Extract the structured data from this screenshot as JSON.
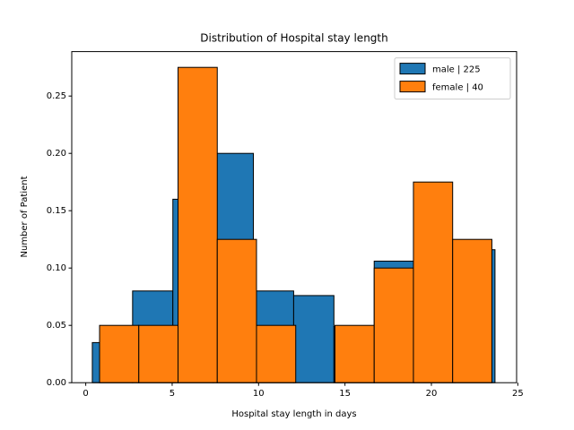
{
  "chart_data": {
    "type": "histogram",
    "title": "Distribution of Hospital stay length",
    "x_label": "Hospital stay length in days",
    "y_label": "Number of Patient",
    "series": [
      {
        "name": "male | 225",
        "color": "#1f77b4",
        "bins": [
          0.38,
          2.71,
          5.04,
          7.37,
          9.7,
          12.03,
          14.36,
          16.69,
          19.02,
          21.35,
          23.68
        ],
        "values": [
          0.035,
          0.08,
          0.16,
          0.2,
          0.08,
          0.076,
          0.049,
          0.106,
          0.098,
          0.116
        ]
      },
      {
        "name": "female | 40",
        "color": "#ff7f0e",
        "bins": [
          0.8,
          3.07,
          5.34,
          7.61,
          9.88,
          12.15,
          14.42,
          16.69,
          18.96,
          21.23,
          23.5
        ],
        "values": [
          0.05,
          0.05,
          0.275,
          0.125,
          0.05,
          0,
          0.05,
          0.1,
          0.175,
          0.125
        ]
      }
    ],
    "xlim": [
      -0.81,
      24.93
    ],
    "ylim": [
      0,
      0.28875
    ],
    "xticks": [
      0,
      5,
      10,
      15,
      20,
      25
    ],
    "yticks": [
      {
        "value": 0,
        "label": "0.00"
      },
      {
        "value": 0.05,
        "label": "0.05"
      },
      {
        "value": 0.1,
        "label": "0.10"
      },
      {
        "value": 0.15,
        "label": "0.15"
      },
      {
        "value": 0.2,
        "label": "0.20"
      },
      {
        "value": 0.25,
        "label": "0.25"
      }
    ],
    "legend": "upper right",
    "edgecolor": "#000000"
  }
}
